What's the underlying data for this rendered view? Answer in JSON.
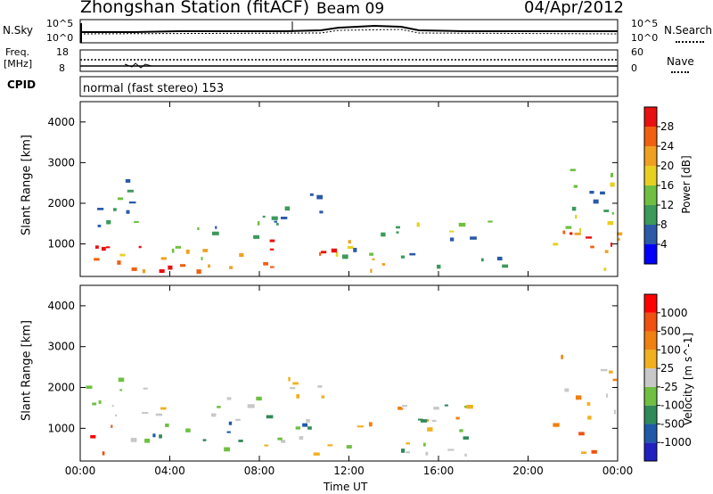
{
  "header": {
    "title": "Zhongshan Station (fitACF)",
    "beam": "Beam 09",
    "date": "04/Apr/2012"
  },
  "top_panels": {
    "nsky_label": "N.Sky",
    "nsky_ticks": [
      "10^5",
      "10^0"
    ],
    "nsearch_label": "N.Search",
    "nsearch_ticks": [
      "10^5",
      "10^0"
    ],
    "freq_label_line1": "Freq.",
    "freq_label_line2": "[MHz]",
    "freq_ticks": [
      "18",
      "8"
    ],
    "nave_label": "Nave",
    "nave_ticks": [
      "60",
      "0"
    ],
    "cpid_label": "CPID",
    "cpid_text": "normal (fast stereo) 153"
  },
  "colors": {
    "power_scale": [
      "#0000ff",
      "#2a5aa8",
      "#3c9a5a",
      "#6fc040",
      "#e8d020",
      "#f0a020",
      "#f06010",
      "#e81010"
    ],
    "velocity_scale": [
      "#ff0000",
      "#f05010",
      "#f08010",
      "#f0b020",
      "#c8c8c8",
      "#6fc040",
      "#2f8a5a",
      "#1e5aa8",
      "#2020c0"
    ]
  },
  "chart_data": [
    {
      "type": "heatmap",
      "name": "power",
      "ylabel": "Slant Range [km]",
      "yticks": [
        "1000",
        "2000",
        "3000",
        "4000"
      ],
      "xticks": [
        "00:00",
        "04:00",
        "08:00",
        "12:00",
        "16:00",
        "20:00",
        "00:00"
      ],
      "colorbar_label": "Power [dB]",
      "colorbar_ticks": [
        "4",
        "8",
        "12",
        "16",
        "20",
        "24",
        "28"
      ],
      "x": [
        0,
        24
      ],
      "ylim": [
        200,
        4500
      ]
    },
    {
      "type": "heatmap",
      "name": "velocity",
      "ylabel": "Slant Range [km]",
      "yticks": [
        "1000",
        "2000",
        "3000",
        "4000"
      ],
      "xticks": [
        "00:00",
        "04:00",
        "08:00",
        "12:00",
        "16:00",
        "20:00",
        "00:00"
      ],
      "xlabel": "Time UT",
      "colorbar_label": "Velocity [m s^-1]",
      "colorbar_ticks": [
        "1000",
        "500",
        "100",
        "25",
        "-25",
        "-100",
        "-500",
        "-1000"
      ],
      "x": [
        0,
        24
      ],
      "ylim": [
        200,
        4500
      ]
    }
  ]
}
